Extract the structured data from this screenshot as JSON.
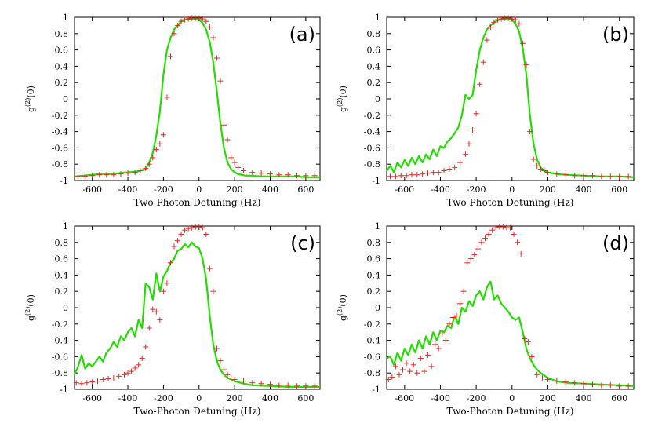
{
  "colors": {
    "line": "#22dd00",
    "points": "#ee2222"
  },
  "chart_data": [
    {
      "type": "line",
      "panel_label": "(a)",
      "xlabel": "Two-Photon Detuning (Hz)",
      "ylabel_main": "g",
      "ylabel_sup": "(2)",
      "ylabel_tail": "(0)",
      "xlim": [
        -700,
        680
      ],
      "ylim": [
        -1,
        1
      ],
      "xticks": [
        -600,
        -400,
        -200,
        0,
        200,
        400,
        600
      ],
      "yticks": [
        -1,
        -0.8,
        -0.6,
        -0.4,
        -0.2,
        0,
        0.2,
        0.4,
        0.6,
        0.8,
        1
      ],
      "xtick_labels": [
        "-600",
        "-400",
        "-200",
        "0",
        "200",
        "400",
        "600"
      ],
      "ytick_labels": [
        "-1",
        "-0.8",
        "-0.6",
        "-0.4",
        "-0.2",
        "0",
        "0.2",
        "0.4",
        "0.6",
        "0.8",
        "1"
      ],
      "series": [
        {
          "name": "line",
          "style": "line",
          "x": [
            -700,
            -650,
            -600,
            -550,
            -500,
            -450,
            -400,
            -350,
            -300,
            -280,
            -260,
            -240,
            -220,
            -200,
            -180,
            -160,
            -140,
            -120,
            -100,
            -80,
            -60,
            -40,
            -20,
            0,
            20,
            40,
            60,
            80,
            100,
            120,
            140,
            160,
            180,
            200,
            220,
            240,
            260,
            300,
            350,
            400,
            450,
            500,
            550,
            600,
            650,
            680
          ],
          "y": [
            -0.95,
            -0.94,
            -0.93,
            -0.92,
            -0.92,
            -0.91,
            -0.9,
            -0.89,
            -0.86,
            -0.78,
            -0.66,
            -0.45,
            -0.15,
            0.3,
            0.6,
            0.75,
            0.85,
            0.9,
            0.95,
            0.97,
            0.98,
            0.98,
            0.98,
            0.97,
            0.93,
            0.85,
            0.7,
            0.45,
            0.1,
            -0.3,
            -0.6,
            -0.78,
            -0.86,
            -0.9,
            -0.92,
            -0.93,
            -0.94,
            -0.94,
            -0.95,
            -0.95,
            -0.95,
            -0.95,
            -0.95,
            -0.96,
            -0.96,
            -0.96
          ]
        },
        {
          "name": "points",
          "style": "plus",
          "x": [
            -680,
            -640,
            -600,
            -560,
            -520,
            -480,
            -440,
            -400,
            -360,
            -330,
            -300,
            -280,
            -260,
            -240,
            -220,
            -200,
            -180,
            -160,
            -140,
            -120,
            -100,
            -80,
            -60,
            -40,
            -20,
            0,
            20,
            40,
            60,
            80,
            100,
            120,
            140,
            160,
            180,
            200,
            220,
            250,
            300,
            350,
            400,
            450,
            500,
            550,
            600,
            650
          ],
          "y": [
            -0.95,
            -0.95,
            -0.94,
            -0.93,
            -0.93,
            -0.93,
            -0.92,
            -0.91,
            -0.9,
            -0.88,
            -0.85,
            -0.8,
            -0.72,
            -0.62,
            -0.55,
            -0.44,
            0.02,
            0.52,
            0.8,
            0.9,
            0.95,
            0.97,
            0.98,
            0.99,
            0.99,
            0.99,
            0.98,
            0.95,
            0.88,
            0.75,
            0.5,
            0.22,
            -0.32,
            -0.5,
            -0.72,
            -0.78,
            -0.84,
            -0.88,
            -0.9,
            -0.91,
            -0.92,
            -0.93,
            -0.93,
            -0.94,
            -0.94,
            -0.94
          ]
        }
      ]
    },
    {
      "type": "line",
      "panel_label": "(b)",
      "xlabel": "Two-Photon Detuning (Hz)",
      "ylabel_main": "g",
      "ylabel_sup": "(2)",
      "ylabel_tail": "(0)",
      "xlim": [
        -700,
        680
      ],
      "ylim": [
        -1,
        1
      ],
      "xticks": [
        -600,
        -400,
        -200,
        0,
        200,
        400,
        600
      ],
      "yticks": [
        -1,
        -0.8,
        -0.6,
        -0.4,
        -0.2,
        0,
        0.2,
        0.4,
        0.6,
        0.8,
        1
      ],
      "xtick_labels": [
        "-600",
        "-400",
        "-200",
        "0",
        "200",
        "400",
        "600"
      ],
      "ytick_labels": [
        "-1",
        "-0.8",
        "-0.6",
        "-0.4",
        "-0.2",
        "0",
        "0.2",
        "0.4",
        "0.6",
        "0.8",
        "1"
      ],
      "series": [
        {
          "name": "line",
          "style": "line",
          "x": [
            -700,
            -680,
            -660,
            -640,
            -620,
            -600,
            -580,
            -560,
            -540,
            -520,
            -500,
            -480,
            -460,
            -440,
            -420,
            -400,
            -380,
            -360,
            -340,
            -320,
            -300,
            -280,
            -260,
            -240,
            -220,
            -200,
            -180,
            -160,
            -140,
            -120,
            -100,
            -80,
            -60,
            -40,
            -20,
            0,
            20,
            40,
            60,
            80,
            100,
            120,
            140,
            160,
            180,
            200,
            250,
            300,
            400,
            500,
            600,
            680
          ],
          "y": [
            -0.88,
            -0.82,
            -0.9,
            -0.78,
            -0.84,
            -0.75,
            -0.82,
            -0.72,
            -0.8,
            -0.7,
            -0.78,
            -0.68,
            -0.74,
            -0.62,
            -0.7,
            -0.58,
            -0.6,
            -0.52,
            -0.48,
            -0.42,
            -0.35,
            -0.2,
            0.05,
            0.0,
            0.05,
            0.35,
            0.6,
            0.75,
            0.85,
            0.9,
            0.94,
            0.96,
            0.98,
            0.98,
            0.98,
            0.97,
            0.92,
            0.82,
            0.62,
            0.3,
            -0.2,
            -0.55,
            -0.74,
            -0.84,
            -0.88,
            -0.9,
            -0.92,
            -0.93,
            -0.94,
            -0.95,
            -0.95,
            -0.96
          ]
        },
        {
          "name": "points",
          "style": "plus",
          "x": [
            -680,
            -650,
            -620,
            -590,
            -560,
            -530,
            -500,
            -470,
            -440,
            -410,
            -380,
            -350,
            -320,
            -290,
            -260,
            -240,
            -220,
            -200,
            -180,
            -160,
            -140,
            -120,
            -100,
            -80,
            -60,
            -40,
            -20,
            0,
            20,
            40,
            60,
            80,
            100,
            120,
            140,
            160,
            180,
            200,
            250,
            300,
            350,
            400,
            450,
            500,
            550,
            600,
            650
          ],
          "y": [
            -0.95,
            -0.95,
            -0.94,
            -0.94,
            -0.93,
            -0.93,
            -0.92,
            -0.91,
            -0.9,
            -0.9,
            -0.88,
            -0.86,
            -0.84,
            -0.78,
            -0.68,
            -0.55,
            -0.38,
            -0.18,
            0.18,
            0.45,
            0.72,
            0.88,
            0.94,
            0.97,
            0.98,
            0.99,
            0.99,
            0.98,
            0.97,
            0.92,
            0.68,
            0.42,
            -0.4,
            -0.74,
            -0.82,
            -0.86,
            -0.88,
            -0.9,
            -0.92,
            -0.93,
            -0.94,
            -0.94,
            -0.94,
            -0.95,
            -0.95,
            -0.95,
            -0.95
          ]
        }
      ]
    },
    {
      "type": "line",
      "panel_label": "(c)",
      "xlabel": "Two-Photon Detuning (Hz)",
      "ylabel_main": "g",
      "ylabel_sup": "(2)",
      "ylabel_tail": "(0)",
      "xlim": [
        -700,
        680
      ],
      "ylim": [
        -1,
        1
      ],
      "xticks": [
        -600,
        -400,
        -200,
        0,
        200,
        400,
        600
      ],
      "yticks": [
        -1,
        -0.8,
        -0.6,
        -0.4,
        -0.2,
        0,
        0.2,
        0.4,
        0.6,
        0.8,
        1
      ],
      "xtick_labels": [
        "-600",
        "-400",
        "-200",
        "0",
        "200",
        "400",
        "600"
      ],
      "ytick_labels": [
        "-1",
        "-0.8",
        "-0.6",
        "-0.4",
        "-0.2",
        "0",
        "0.2",
        "0.4",
        "0.6",
        "0.8",
        "1"
      ],
      "series": [
        {
          "name": "line",
          "style": "line",
          "x": [
            -700,
            -680,
            -660,
            -640,
            -620,
            -600,
            -580,
            -560,
            -540,
            -520,
            -500,
            -480,
            -460,
            -440,
            -420,
            -400,
            -380,
            -360,
            -340,
            -320,
            -300,
            -280,
            -260,
            -240,
            -220,
            -200,
            -180,
            -160,
            -140,
            -120,
            -100,
            -80,
            -60,
            -40,
            -20,
            0,
            20,
            40,
            60,
            80,
            100,
            120,
            140,
            160,
            200,
            250,
            300,
            400,
            500,
            600,
            680
          ],
          "y": [
            -0.82,
            -0.72,
            -0.58,
            -0.75,
            -0.68,
            -0.72,
            -0.66,
            -0.6,
            -0.66,
            -0.55,
            -0.5,
            -0.42,
            -0.48,
            -0.35,
            -0.4,
            -0.3,
            -0.25,
            -0.35,
            -0.15,
            -0.25,
            0.3,
            0.25,
            0.1,
            0.42,
            0.2,
            0.38,
            0.45,
            0.55,
            0.6,
            0.7,
            0.72,
            0.78,
            0.74,
            0.8,
            0.75,
            0.73,
            0.6,
            0.35,
            -0.1,
            -0.45,
            -0.65,
            -0.76,
            -0.82,
            -0.86,
            -0.9,
            -0.93,
            -0.95,
            -0.96,
            -0.97,
            -0.97,
            -0.97
          ]
        },
        {
          "name": "points",
          "style": "plus",
          "x": [
            -690,
            -660,
            -630,
            -600,
            -570,
            -540,
            -510,
            -480,
            -450,
            -420,
            -400,
            -380,
            -360,
            -340,
            -320,
            -300,
            -280,
            -260,
            -240,
            -220,
            -200,
            -180,
            -160,
            -140,
            -120,
            -100,
            -80,
            -60,
            -40,
            -20,
            0,
            20,
            40,
            60,
            80,
            100,
            120,
            140,
            160,
            180,
            200,
            250,
            300,
            350,
            400,
            450,
            500,
            550,
            600,
            650
          ],
          "y": [
            -0.92,
            -0.93,
            -0.92,
            -0.91,
            -0.9,
            -0.88,
            -0.87,
            -0.86,
            -0.84,
            -0.82,
            -0.8,
            -0.78,
            -0.74,
            -0.7,
            -0.62,
            -0.48,
            -0.25,
            -0.02,
            -0.05,
            -0.15,
            0.2,
            0.3,
            0.55,
            0.75,
            0.82,
            0.9,
            0.95,
            0.97,
            0.98,
            0.99,
            0.99,
            0.98,
            0.9,
            0.48,
            0.2,
            -0.5,
            -0.65,
            -0.76,
            -0.82,
            -0.86,
            -0.88,
            -0.9,
            -0.92,
            -0.93,
            -0.94,
            -0.95,
            -0.95,
            -0.96,
            -0.96,
            -0.96
          ]
        }
      ]
    },
    {
      "type": "line",
      "panel_label": "(d)",
      "xlabel": "Two-Photon Detuning (Hz)",
      "ylabel_main": "g",
      "ylabel_sup": "(2)",
      "ylabel_tail": "(0)",
      "xlim": [
        -700,
        680
      ],
      "ylim": [
        -1,
        1
      ],
      "xticks": [
        -600,
        -400,
        -200,
        0,
        200,
        400,
        600
      ],
      "yticks": [
        -1,
        -0.8,
        -0.6,
        -0.4,
        -0.2,
        0,
        0.2,
        0.4,
        0.6,
        0.8,
        1
      ],
      "xtick_labels": [
        "-600",
        "-400",
        "-200",
        "0",
        "200",
        "400",
        "600"
      ],
      "ytick_labels": [
        "-1",
        "-0.8",
        "-0.6",
        "-0.4",
        "-0.2",
        "0",
        "0.2",
        "0.4",
        "0.6",
        "0.8",
        "1"
      ],
      "series": [
        {
          "name": "line",
          "style": "line",
          "x": [
            -700,
            -680,
            -660,
            -640,
            -620,
            -600,
            -580,
            -560,
            -540,
            -520,
            -500,
            -480,
            -460,
            -440,
            -420,
            -400,
            -380,
            -360,
            -340,
            -320,
            -300,
            -280,
            -260,
            -240,
            -220,
            -200,
            -180,
            -160,
            -140,
            -120,
            -100,
            -80,
            -60,
            -40,
            -20,
            0,
            20,
            40,
            60,
            80,
            100,
            120,
            140,
            160,
            200,
            250,
            300,
            400,
            500,
            600,
            680
          ],
          "y": [
            -0.62,
            -0.6,
            -0.7,
            -0.55,
            -0.65,
            -0.5,
            -0.58,
            -0.45,
            -0.55,
            -0.4,
            -0.5,
            -0.35,
            -0.45,
            -0.3,
            -0.4,
            -0.28,
            -0.3,
            -0.22,
            -0.25,
            -0.1,
            -0.2,
            0.0,
            -0.05,
            0.08,
            0.02,
            0.15,
            0.2,
            0.1,
            0.25,
            0.32,
            0.1,
            0.15,
            0.05,
            0.0,
            -0.05,
            -0.12,
            -0.15,
            -0.12,
            -0.3,
            -0.5,
            -0.62,
            -0.7,
            -0.76,
            -0.8,
            -0.86,
            -0.9,
            -0.92,
            -0.93,
            -0.94,
            -0.95,
            -0.96
          ]
        },
        {
          "name": "points",
          "style": "plus",
          "x": [
            -690,
            -670,
            -650,
            -630,
            -610,
            -590,
            -570,
            -550,
            -530,
            -510,
            -490,
            -470,
            -450,
            -430,
            -410,
            -390,
            -370,
            -350,
            -330,
            -310,
            -290,
            -270,
            -250,
            -230,
            -210,
            -190,
            -170,
            -150,
            -130,
            -110,
            -90,
            -70,
            -50,
            -30,
            -10,
            10,
            30,
            50,
            70,
            90,
            110,
            140,
            170,
            200,
            250,
            300,
            350,
            400,
            450,
            500,
            550,
            600,
            650
          ],
          "y": [
            -0.88,
            -0.85,
            -0.72,
            -0.82,
            -0.76,
            -0.68,
            -0.78,
            -0.7,
            -0.8,
            -0.62,
            -0.78,
            -0.58,
            -0.72,
            -0.45,
            -0.5,
            -0.32,
            -0.4,
            -0.2,
            -0.12,
            -0.1,
            0.05,
            0.2,
            0.55,
            0.6,
            0.65,
            0.72,
            0.8,
            0.85,
            0.9,
            0.95,
            0.98,
            0.99,
            0.99,
            0.98,
            0.98,
            0.9,
            0.8,
            0.66,
            -0.38,
            -0.42,
            -0.6,
            -0.82,
            -0.86,
            -0.88,
            -0.9,
            -0.91,
            -0.92,
            -0.93,
            -0.94,
            -0.95,
            -0.95,
            -0.96,
            -0.96
          ]
        }
      ]
    }
  ]
}
